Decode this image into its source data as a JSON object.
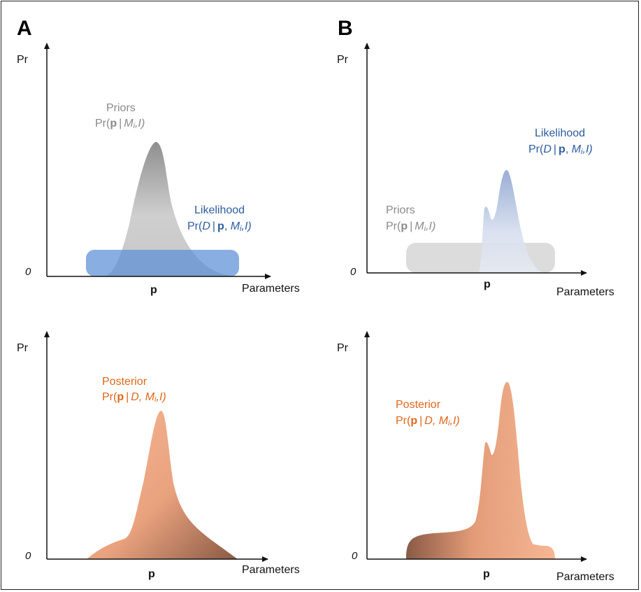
{
  "panels": {
    "A": {
      "letter": "A",
      "top": {
        "ylabel": "Pr",
        "xlabel": "Parameters",
        "zero": "0",
        "p": "p",
        "priors": {
          "name": "Priors",
          "pr": "Pr(",
          "p": "p",
          "bar": "|",
          "m": "M",
          "i": "i",
          "l": ",I)"
        },
        "likelihood": {
          "name": "Likelihood",
          "pr": "Pr(",
          "d": "D",
          "bar": "|",
          "p": "p",
          "sep": ", ",
          "m": "M",
          "i": "i",
          "l": ",I)"
        }
      },
      "bottom": {
        "ylabel": "Pr",
        "xlabel": "Parameters",
        "zero": "0",
        "p": "p",
        "posterior": {
          "name": "Posterior",
          "pr": "Pr(",
          "p": "p",
          "bar": "|",
          "d": "D,",
          "m": " M",
          "i": "i",
          "l": ",I)"
        }
      }
    },
    "B": {
      "letter": "B",
      "top": {
        "ylabel": "Pr",
        "xlabel": "Parameters",
        "zero": "0",
        "p": "p",
        "priors": {
          "name": "Priors",
          "pr": "Pr(",
          "p": "p",
          "bar": "|",
          "m": "M",
          "i": "i",
          "l": ",I)"
        },
        "likelihood": {
          "name": "Likelihood",
          "pr": "Pr(",
          "d": "D",
          "bar": "|",
          "p": "p",
          "sep": ", ",
          "m": "M",
          "i": "i",
          "l": ",I)"
        }
      },
      "bottom": {
        "ylabel": "Pr",
        "xlabel": "Parameters",
        "zero": "0",
        "p": "p",
        "posterior": {
          "name": "Posterior",
          "pr": "Pr(",
          "p": "p",
          "bar": "|",
          "d": "D,",
          "m": " M",
          "i": "i",
          "l": ",I)"
        }
      }
    }
  },
  "colors": {
    "priors": "#8a8a8a",
    "likelihood": "#2f5b9e",
    "posterior": "#e0661a",
    "likelihood_fill": "#6f9bd6",
    "posterior_fill": "#e9a27e"
  }
}
